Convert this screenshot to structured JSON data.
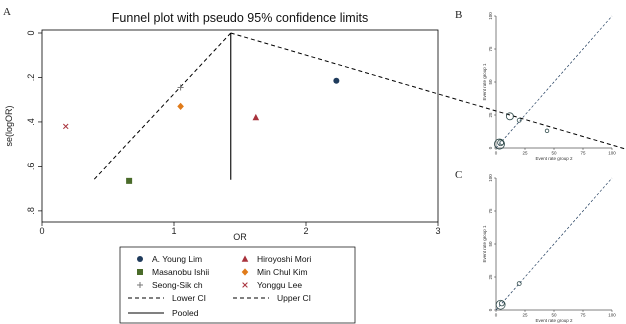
{
  "chart_data": [
    {
      "panel": "A",
      "type": "scatter",
      "title": "Funnel plot with pseudo 95% confidence limits",
      "xlabel": "OR",
      "ylabel": "se(logOR)",
      "xlim": [
        0,
        3
      ],
      "ylim": [
        0,
        0.85
      ],
      "y_reversed": true,
      "xticks": [
        "0",
        "1",
        "2",
        "3"
      ],
      "yticks": [
        "0",
        ".2",
        ".4",
        ".6",
        ".8"
      ],
      "pooled": 1.43,
      "series": [
        {
          "name": "A. Young Lim",
          "marker": "circle",
          "color": "#1f3b5c",
          "x": 2.23,
          "y": 0.215
        },
        {
          "name": "Hiroyoshi Mori",
          "marker": "triangle",
          "color": "#a8323c",
          "x": 1.62,
          "y": 0.38
        },
        {
          "name": "Masanobu Ishii",
          "marker": "square",
          "color": "#4a6b2a",
          "x": 0.66,
          "y": 0.665
        },
        {
          "name": "Min Chul Kim",
          "marker": "diamond",
          "color": "#e07b1a",
          "x": 1.05,
          "y": 0.33
        },
        {
          "name": "Seong-Sik ch",
          "marker": "plus",
          "color": "#777777",
          "x": 1.05,
          "y": 0.245
        },
        {
          "name": "Yonggu Lee",
          "marker": "x",
          "color": "#a8323c",
          "x": 0.18,
          "y": 0.42
        }
      ],
      "legend_lines": [
        {
          "name": "Lower CI",
          "style": "dashed"
        },
        {
          "name": "Upper CI",
          "style": "dashed"
        },
        {
          "name": "Pooled",
          "style": "solid"
        }
      ],
      "legend_placement": "bottom"
    },
    {
      "panel": "B",
      "type": "scatter",
      "xlabel": "Event rate group 2",
      "ylabel": "Event rate group 1",
      "xlim": [
        0,
        100
      ],
      "ylim": [
        0,
        100
      ],
      "xticks": [
        "0",
        "25",
        "50",
        "75",
        "100"
      ],
      "yticks": [
        "0",
        "25",
        "50",
        "75",
        "100"
      ],
      "points": [
        {
          "x": 3,
          "y": 3,
          "r": 5
        },
        {
          "x": 4,
          "y": 4,
          "r": 3
        },
        {
          "x": 5,
          "y": 4,
          "r": 2
        },
        {
          "x": 12,
          "y": 24,
          "r": 3.5
        },
        {
          "x": 20,
          "y": 21,
          "r": 2
        },
        {
          "x": 44,
          "y": 13,
          "r": 1.8
        }
      ]
    },
    {
      "panel": "C",
      "type": "scatter",
      "xlabel": "Event rate group 2",
      "ylabel": "Event rate group 1",
      "xlim": [
        0,
        100
      ],
      "ylim": [
        0,
        100
      ],
      "xticks": [
        "0",
        "25",
        "50",
        "75",
        "100"
      ],
      "yticks": [
        "0",
        "25",
        "50",
        "75",
        "100"
      ],
      "points": [
        {
          "x": 4,
          "y": 4,
          "r": 4.5
        },
        {
          "x": 5,
          "y": 5,
          "r": 2.5
        },
        {
          "x": 20,
          "y": 20,
          "r": 2
        }
      ]
    }
  ],
  "labels": {
    "a": "A",
    "b": "B",
    "c": "C"
  }
}
